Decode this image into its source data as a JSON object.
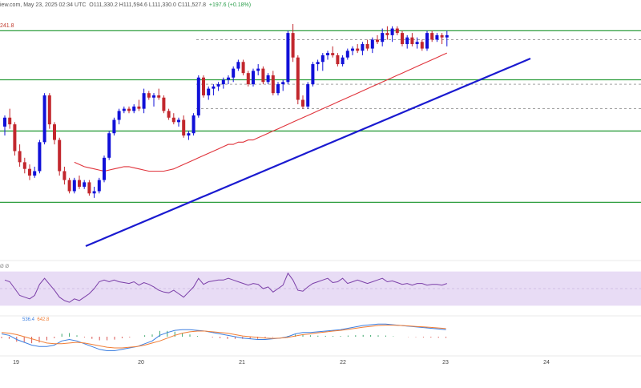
{
  "header": {
    "source_fragment": "iew.com,",
    "date": "May 23, 2025 02:34 UTC",
    "ohlc": "O111,330.2  H111,594.6  L111,330.0  C111,527.8",
    "change": "+197.6 (+0.18%)",
    "ma_value": "241.8"
  },
  "rsi_header": {
    "values": "Ø  Ø"
  },
  "macd_header": {
    "v1": "536.4",
    "v2": "642.8"
  },
  "colors": {
    "up": "#1010d8",
    "down": "#c2272d",
    "ma": "#e0343c",
    "trendline": "#1a1ad0",
    "hline": "#2e9e3e",
    "rsi_band": "#e8dcf5",
    "rsi_line": "#7b3fa8",
    "rsi_signal": "#e6b84c",
    "macd": "#3d7fe0",
    "macd_signal": "#f07d35"
  },
  "chart_data": {
    "type": "candlestick",
    "x_ticks": [
      "19",
      "20",
      "21",
      "22",
      "23",
      "24"
    ],
    "candles_ohlc": [
      [
        0.54,
        0.59,
        0.5,
        0.58
      ],
      [
        0.58,
        0.62,
        0.53,
        0.55
      ],
      [
        0.55,
        0.56,
        0.41,
        0.43
      ],
      [
        0.43,
        0.46,
        0.36,
        0.38
      ],
      [
        0.38,
        0.4,
        0.33,
        0.35
      ],
      [
        0.35,
        0.37,
        0.3,
        0.32
      ],
      [
        0.32,
        0.36,
        0.31,
        0.34
      ],
      [
        0.34,
        0.48,
        0.33,
        0.47
      ],
      [
        0.47,
        0.69,
        0.46,
        0.68
      ],
      [
        0.68,
        0.69,
        0.53,
        0.55
      ],
      [
        0.55,
        0.56,
        0.46,
        0.48
      ],
      [
        0.48,
        0.49,
        0.32,
        0.34
      ],
      [
        0.34,
        0.36,
        0.28,
        0.3
      ],
      [
        0.3,
        0.31,
        0.24,
        0.25
      ],
      [
        0.25,
        0.31,
        0.24,
        0.3
      ],
      [
        0.3,
        0.32,
        0.26,
        0.27
      ],
      [
        0.27,
        0.3,
        0.26,
        0.29
      ],
      [
        0.29,
        0.3,
        0.23,
        0.24
      ],
      [
        0.24,
        0.27,
        0.22,
        0.25
      ],
      [
        0.25,
        0.31,
        0.24,
        0.3
      ],
      [
        0.3,
        0.41,
        0.29,
        0.4
      ],
      [
        0.4,
        0.52,
        0.39,
        0.51
      ],
      [
        0.51,
        0.58,
        0.5,
        0.57
      ],
      [
        0.57,
        0.62,
        0.55,
        0.61
      ],
      [
        0.61,
        0.63,
        0.6,
        0.62
      ],
      [
        0.62,
        0.63,
        0.6,
        0.61
      ],
      [
        0.61,
        0.64,
        0.6,
        0.63
      ],
      [
        0.63,
        0.66,
        0.61,
        0.62
      ],
      [
        0.62,
        0.71,
        0.6,
        0.69
      ],
      [
        0.69,
        0.7,
        0.66,
        0.67
      ],
      [
        0.67,
        0.69,
        0.63,
        0.68
      ],
      [
        0.68,
        0.71,
        0.66,
        0.67
      ],
      [
        0.67,
        0.68,
        0.6,
        0.61
      ],
      [
        0.61,
        0.62,
        0.57,
        0.58
      ],
      [
        0.58,
        0.6,
        0.55,
        0.56
      ],
      [
        0.56,
        0.58,
        0.54,
        0.57
      ],
      [
        0.57,
        0.59,
        0.49,
        0.5
      ],
      [
        0.5,
        0.52,
        0.48,
        0.51
      ],
      [
        0.51,
        0.6,
        0.5,
        0.59
      ],
      [
        0.59,
        0.77,
        0.58,
        0.76
      ],
      [
        0.76,
        0.77,
        0.67,
        0.68
      ],
      [
        0.68,
        0.72,
        0.66,
        0.71
      ],
      [
        0.71,
        0.73,
        0.68,
        0.72
      ],
      [
        0.72,
        0.74,
        0.7,
        0.73
      ],
      [
        0.73,
        0.76,
        0.71,
        0.75
      ],
      [
        0.75,
        0.77,
        0.73,
        0.76
      ],
      [
        0.76,
        0.81,
        0.74,
        0.8
      ],
      [
        0.8,
        0.84,
        0.79,
        0.83
      ],
      [
        0.83,
        0.84,
        0.77,
        0.78
      ],
      [
        0.78,
        0.79,
        0.72,
        0.73
      ],
      [
        0.73,
        0.8,
        0.72,
        0.79
      ],
      [
        0.79,
        0.82,
        0.77,
        0.8
      ],
      [
        0.8,
        0.81,
        0.73,
        0.74
      ],
      [
        0.74,
        0.78,
        0.73,
        0.77
      ],
      [
        0.77,
        0.79,
        0.68,
        0.69
      ],
      [
        0.69,
        0.74,
        0.68,
        0.73
      ],
      [
        0.73,
        0.75,
        0.7,
        0.74
      ],
      [
        0.74,
        0.97,
        0.73,
        0.96
      ],
      [
        0.96,
        1.0,
        0.83,
        0.85
      ],
      [
        0.85,
        0.86,
        0.64,
        0.66
      ],
      [
        0.66,
        0.68,
        0.62,
        0.63
      ],
      [
        0.63,
        0.74,
        0.62,
        0.73
      ],
      [
        0.73,
        0.83,
        0.72,
        0.82
      ],
      [
        0.82,
        0.84,
        0.79,
        0.83
      ],
      [
        0.83,
        0.87,
        0.79,
        0.86
      ],
      [
        0.86,
        0.88,
        0.84,
        0.87
      ],
      [
        0.87,
        0.9,
        0.85,
        0.86
      ],
      [
        0.86,
        0.87,
        0.81,
        0.82
      ],
      [
        0.82,
        0.86,
        0.81,
        0.85
      ],
      [
        0.85,
        0.89,
        0.84,
        0.88
      ],
      [
        0.88,
        0.9,
        0.86,
        0.89
      ],
      [
        0.89,
        0.91,
        0.87,
        0.88
      ],
      [
        0.88,
        0.92,
        0.86,
        0.91
      ],
      [
        0.91,
        0.93,
        0.88,
        0.89
      ],
      [
        0.89,
        0.94,
        0.87,
        0.93
      ],
      [
        0.93,
        0.95,
        0.91,
        0.92
      ],
      [
        0.92,
        0.98,
        0.9,
        0.96
      ],
      [
        0.96,
        0.99,
        0.93,
        0.95
      ],
      [
        0.95,
        0.99,
        0.92,
        0.98
      ],
      [
        0.98,
        0.99,
        0.95,
        0.96
      ],
      [
        0.96,
        0.97,
        0.9,
        0.91
      ],
      [
        0.91,
        0.95,
        0.89,
        0.94
      ],
      [
        0.94,
        0.96,
        0.9,
        0.91
      ],
      [
        0.91,
        0.94,
        0.89,
        0.92
      ],
      [
        0.92,
        0.93,
        0.88,
        0.89
      ],
      [
        0.89,
        0.97,
        0.88,
        0.96
      ],
      [
        0.96,
        0.97,
        0.92,
        0.93
      ],
      [
        0.93,
        0.96,
        0.92,
        0.95
      ],
      [
        0.95,
        0.96,
        0.91,
        0.94
      ],
      [
        0.94,
        0.97,
        0.9,
        0.95
      ]
    ],
    "moving_average": [
      0.38,
      0.37,
      0.36,
      0.355,
      0.35,
      0.345,
      0.34,
      0.345,
      0.35,
      0.355,
      0.36,
      0.36,
      0.355,
      0.35,
      0.345,
      0.34,
      0.34,
      0.34,
      0.34,
      0.345,
      0.35,
      0.36,
      0.37,
      0.38,
      0.39,
      0.4,
      0.41,
      0.42,
      0.43,
      0.44,
      0.45,
      0.46,
      0.46,
      0.47,
      0.47,
      0.48,
      0.48,
      0.49,
      0.5,
      0.51,
      0.52,
      0.53,
      0.54,
      0.55,
      0.56,
      0.57,
      0.58,
      0.59,
      0.6,
      0.61,
      0.62,
      0.63,
      0.64,
      0.65,
      0.66,
      0.67,
      0.68,
      0.69,
      0.7,
      0.71,
      0.72,
      0.73,
      0.74,
      0.75,
      0.76,
      0.77,
      0.78,
      0.79,
      0.8,
      0.81,
      0.82,
      0.83,
      0.84,
      0.85,
      0.86,
      0.87
    ],
    "rsi": [
      60,
      58,
      50,
      42,
      40,
      38,
      42,
      55,
      62,
      55,
      48,
      40,
      36,
      34,
      38,
      36,
      40,
      44,
      50,
      58,
      60,
      58,
      60,
      58,
      57,
      56,
      58,
      54,
      57,
      55,
      52,
      48,
      46,
      45,
      48,
      44,
      40,
      46,
      52,
      62,
      55,
      58,
      59,
      60,
      60,
      62,
      60,
      58,
      56,
      54,
      56,
      55,
      50,
      52,
      46,
      50,
      54,
      68,
      60,
      48,
      47,
      52,
      56,
      58,
      60,
      62,
      57,
      58,
      62,
      56,
      58,
      60,
      58,
      56,
      58,
      60,
      62,
      58,
      59,
      57,
      55,
      56,
      54,
      56,
      56,
      54,
      55,
      55,
      54,
      56
    ],
    "macd": [
      0.2,
      0.1,
      -0.2,
      -0.4,
      -0.6,
      -0.7,
      -0.7,
      -0.6,
      -0.3,
      -0.2,
      -0.3,
      -0.5,
      -0.7,
      -0.9,
      -1.0,
      -1.0,
      -0.9,
      -0.8,
      -0.7,
      -0.5,
      -0.3,
      0.1,
      0.3,
      0.45,
      0.5,
      0.5,
      0.45,
      0.4,
      0.3,
      0.2,
      0.1,
      0.0,
      -0.1,
      -0.15,
      -0.2,
      -0.2,
      -0.15,
      -0.1,
      0.0,
      0.2,
      0.3,
      0.3,
      0.35,
      0.4,
      0.45,
      0.5,
      0.6,
      0.7,
      0.8,
      0.85,
      0.9,
      0.9,
      0.85,
      0.8,
      0.75,
      0.7,
      0.65,
      0.6,
      0.55,
      0.5
    ],
    "macd_signal": [
      0.3,
      0.25,
      0.15,
      0.0,
      -0.15,
      -0.3,
      -0.45,
      -0.5,
      -0.5,
      -0.45,
      -0.4,
      -0.45,
      -0.55,
      -0.65,
      -0.75,
      -0.8,
      -0.8,
      -0.75,
      -0.7,
      -0.6,
      -0.45,
      -0.3,
      -0.1,
      0.1,
      0.25,
      0.35,
      0.4,
      0.4,
      0.35,
      0.3,
      0.25,
      0.15,
      0.05,
      0.0,
      -0.05,
      -0.1,
      -0.12,
      -0.1,
      -0.05,
      0.05,
      0.15,
      0.2,
      0.28,
      0.34,
      0.4,
      0.45,
      0.52,
      0.6,
      0.68,
      0.74,
      0.8,
      0.82,
      0.82,
      0.8,
      0.77,
      0.73,
      0.7,
      0.66,
      0.62,
      0.58
    ],
    "support_resistance_levels": [
      0.2,
      0.52,
      0.75,
      0.97
    ],
    "grid": false
  }
}
